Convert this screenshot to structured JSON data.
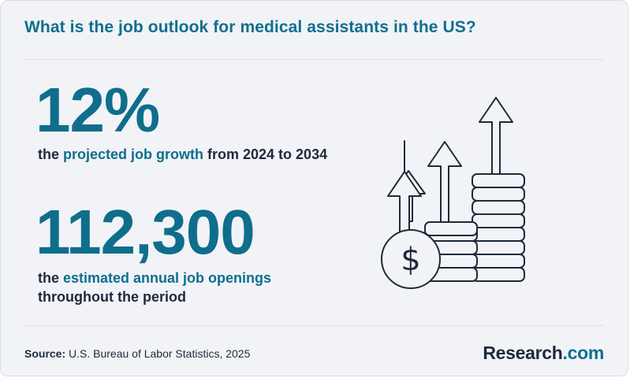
{
  "header": {
    "title": "What is the job outlook for medical assistants in the US?"
  },
  "stats": [
    {
      "value": "12%",
      "desc_pre": "the ",
      "desc_highlight": "projected job growth",
      "desc_post": " from 2024 to 2034"
    },
    {
      "value": "112,300",
      "desc_pre": "the ",
      "desc_highlight": "estimated annual job openings",
      "desc_post": " throughout the period"
    }
  ],
  "illustration": {
    "icon": "coins-growth-arrows-icon",
    "coin_symbol": "$"
  },
  "footer": {
    "source_label": "Source:",
    "source_text": " U.S. Bureau of Labor Statistics, 2025",
    "brand_main": "Research",
    "brand_suffix": ".com"
  },
  "colors": {
    "accent": "#0f6e8c",
    "text": "#1e2a3a",
    "background": "#f1f3f7"
  }
}
